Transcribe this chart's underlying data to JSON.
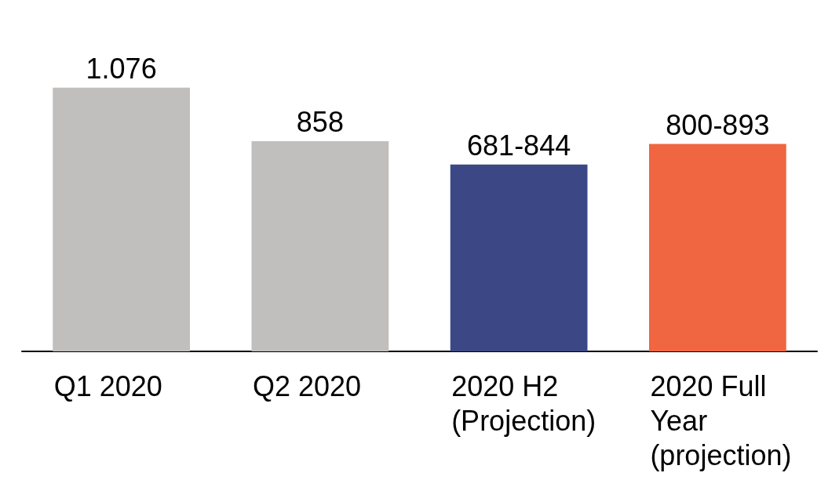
{
  "chart_data": {
    "type": "bar",
    "categories": [
      "Q1 2020",
      "Q2 2020",
      "2020 H2 (Projection)",
      "2020 Full Year (projection)"
    ],
    "values": [
      1076,
      858,
      762.5,
      846.5
    ],
    "colors": [
      "#c0bfbd",
      "#c0bfbd",
      "#3c4885",
      "#ef6640"
    ],
    "value_labels": [
      "1.076",
      "858",
      "681-844",
      "800-893"
    ]
  }
}
